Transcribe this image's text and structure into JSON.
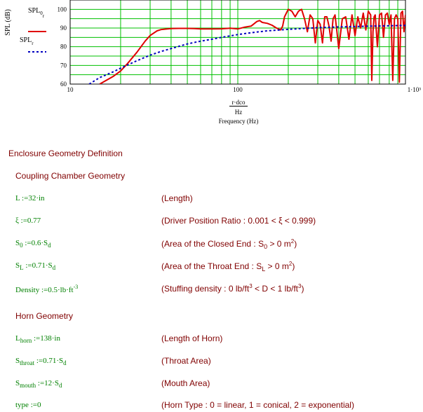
{
  "chart_data": {
    "type": "line",
    "xscale": "log",
    "xlim": [
      10,
      1000
    ],
    "ylim": [
      60,
      105
    ],
    "yticks": [
      60,
      70,
      80,
      90,
      100
    ],
    "ytick_labels": [
      "60",
      "70",
      "80",
      "90",
      "100"
    ],
    "xtick_labels": [
      "10",
      "100",
      "1·10³"
    ],
    "ylabel": "SPL (dB)",
    "xlabel_num": "r·dco",
    "xlabel_den": "Hz",
    "xlabel": "Frequency (Hz)",
    "grid": true,
    "legend_position": "left",
    "series": [
      {
        "name": "SPL_0r",
        "color": "#e00000",
        "style": "solid",
        "x": [
          15,
          18,
          20,
          22,
          25,
          28,
          30,
          33,
          35,
          38,
          40,
          45,
          50,
          55,
          60,
          70,
          80,
          90,
          100,
          110,
          120,
          130,
          135,
          140,
          150,
          160,
          170,
          180,
          185,
          190,
          200,
          210,
          220,
          230,
          240,
          250,
          260,
          270,
          280,
          290,
          300,
          310,
          320,
          330,
          340,
          350,
          360,
          370,
          380,
          390,
          400,
          420,
          440,
          460,
          480,
          500,
          520,
          540,
          560,
          580,
          600,
          620,
          630,
          640,
          650,
          660,
          680,
          700,
          720,
          740,
          760,
          780,
          800,
          820,
          840,
          860,
          880,
          900,
          920,
          940,
          960,
          980,
          1000
        ],
        "y": [
          60,
          64,
          67,
          71,
          77,
          83,
          86,
          88.5,
          89.2,
          89.5,
          89.7,
          89.8,
          89.8,
          89.7,
          89.5,
          89.5,
          89.6,
          89.9,
          89.5,
          90.5,
          91,
          93.5,
          94,
          93,
          92.5,
          91.5,
          90,
          89,
          91,
          96,
          100,
          99,
          96,
          99,
          100,
          95,
          88,
          97,
          95,
          82,
          94,
          92,
          82,
          96,
          96,
          91,
          83,
          95,
          97,
          88,
          79,
          95,
          96,
          84,
          97,
          86,
          96,
          90,
          98,
          89,
          99,
          97,
          62,
          88,
          96,
          97,
          80,
          97,
          98,
          85,
          97,
          98,
          92,
          97,
          62,
          95,
          97,
          95,
          61,
          98,
          99,
          88,
          97
        ]
      },
      {
        "name": "SPL_r",
        "color": "#0000c0",
        "style": "dashed",
        "x": [
          13,
          15,
          18,
          20,
          25,
          30,
          35,
          40,
          50,
          60,
          70,
          80,
          90,
          100,
          120,
          150,
          200,
          250,
          300,
          400,
          500,
          600,
          700,
          800,
          900,
          1000
        ],
        "y": [
          60,
          63.5,
          66.5,
          68.5,
          72.5,
          75.5,
          77.5,
          79,
          81.5,
          83,
          84,
          85,
          85.8,
          86.5,
          87.5,
          88.5,
          89.3,
          89.8,
          90.2,
          90.6,
          90.8,
          91,
          91.1,
          91.2,
          91.3,
          91.4
        ]
      }
    ]
  },
  "legend": {
    "spl0r_main": "SPL",
    "spl0r_sub": "0",
    "spl0r_sub2": "r",
    "splr_main": "SPL",
    "splr_sub": "r"
  },
  "doc": {
    "section_title": "Enclosure Geometry Definition",
    "coupling_title": "Coupling Chamber Geometry",
    "horn_title": "Horn Geometry",
    "rows": [
      {
        "eq_main": "L :=32·in",
        "comment": "(Length)"
      },
      {
        "eq_main": "ξ :=0.77",
        "comment": "(Driver Position Ratio : 0.001 < ξ < 0.999)"
      },
      {
        "eq_a": "S",
        "eq_sub": "0",
        "eq_b": " :=0.6·S",
        "eq_sub2": "d",
        "c_a": "(Area of the Closed End : S",
        "c_sub": "0",
        "c_b": " > 0 m",
        "c_sup": "2",
        "c_c": ")"
      },
      {
        "eq_a": "S",
        "eq_sub": "L",
        "eq_b": " :=0.71·S",
        "eq_sub2": "d",
        "c_a": "(Area of the Throat End : S",
        "c_sub": "L",
        "c_b": " > 0 m",
        "c_sup": "2",
        "c_c": ")"
      },
      {
        "eq_a": "Density :=0.5·lb·ft",
        "eq_sup": "-3",
        "c_a": "(Stuffing density : 0 lb/ft",
        "c_sup": "3",
        "c_b": " < D < 1 lb/ft",
        "c_sup2": "3",
        "c_c": ")"
      },
      {
        "eq_a": "L",
        "eq_sub": "horn",
        "eq_b": " :=138·in",
        "comment": "(Length of Horn)"
      },
      {
        "eq_a": "S",
        "eq_sub": "throat",
        "eq_b": " :=0.71·S",
        "eq_sub2": "d",
        "comment": "(Throat Area)"
      },
      {
        "eq_a": "S",
        "eq_sub": "mouth",
        "eq_b": " :=12·S",
        "eq_sub2": "d",
        "comment": "(Mouth Area)"
      },
      {
        "eq_main": "type :=0",
        "comment": "(Horn Type : 0 = linear, 1 = conical, 2 = exponential)"
      }
    ]
  }
}
